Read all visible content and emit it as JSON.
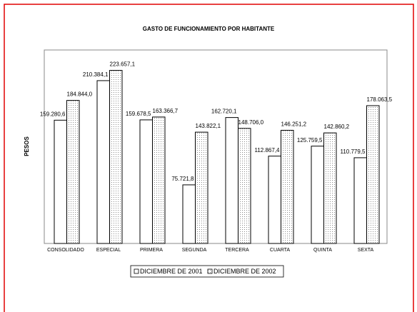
{
  "chart_data": {
    "type": "bar",
    "title": "GASTO DE FUNCIONAMIENTO POR HABITANTE",
    "y_label": "PESOS",
    "categories": [
      "CONSOLIDADO",
      "ESPECIAL",
      "PRIMERA",
      "SEGUNDA",
      "TERCERA",
      "CUARTA",
      "QUINTA",
      "SEXTA"
    ],
    "series": [
      {
        "name": "DICIEMBRE DE 2001",
        "color": "#ffffff",
        "values": [
          159280.6,
          210384.1,
          159678.5,
          75721.8,
          162720.1,
          112867.4,
          125759.5,
          110779.5
        ],
        "value_labels": [
          "159.280,6",
          "210.384,1",
          "159.678,5",
          "75.721,8",
          "162.720,1",
          "112.867,4",
          "125.759,5",
          "110.779,5"
        ]
      },
      {
        "name": "DICIEMBRE DE 2002",
        "color": "#e6e6e6",
        "values": [
          184844.0,
          223657.1,
          163366.7,
          143822.1,
          148706.0,
          146251.2,
          142860.2,
          178063.5
        ],
        "value_labels": [
          "184.844,0",
          "223.657,1",
          "163.366,7",
          "143.822,1",
          "148.706,0",
          "146.251,2",
          "142.860,2",
          "178.063,5"
        ]
      }
    ],
    "ylim": [
      0,
      250000
    ],
    "legend": "bottom"
  }
}
